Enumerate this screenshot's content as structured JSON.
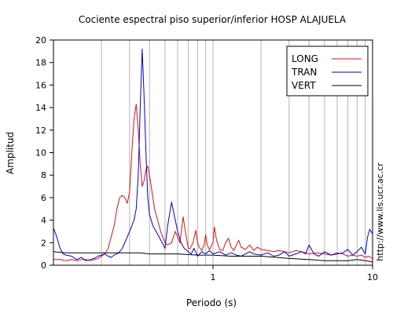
{
  "chart_data": {
    "type": "line",
    "title": "Cociente espectral piso superior/inferior  HOSP ALAJUELA",
    "xlabel": "Periodo (s)",
    "ylabel": "Amplitud",
    "side_label": "http://www.lis.ucr.ac.cr",
    "x_scale": "log",
    "xlim": [
      0.1,
      10
    ],
    "ylim": [
      0,
      20
    ],
    "x_ticks": [
      1,
      10
    ],
    "x_tick_labels": [
      "1",
      "10"
    ],
    "y_ticks": [
      0,
      2,
      4,
      6,
      8,
      10,
      12,
      14,
      16,
      18,
      20
    ],
    "y_tick_labels": [
      "0",
      "2",
      "4",
      "6",
      "8",
      "10",
      "12",
      "14",
      "16",
      "18",
      "20"
    ],
    "grid": "vertical log grid",
    "legend_position": "top-right",
    "series": [
      {
        "name": "LONG",
        "color": "#e01010",
        "x": [
          0.1,
          0.11,
          0.12,
          0.13,
          0.14,
          0.15,
          0.16,
          0.17,
          0.18,
          0.19,
          0.2,
          0.21,
          0.22,
          0.23,
          0.24,
          0.25,
          0.26,
          0.27,
          0.28,
          0.29,
          0.3,
          0.31,
          0.32,
          0.33,
          0.34,
          0.35,
          0.36,
          0.37,
          0.38,
          0.39,
          0.4,
          0.41,
          0.42,
          0.43,
          0.45,
          0.47,
          0.5,
          0.52,
          0.55,
          0.58,
          0.6,
          0.62,
          0.65,
          0.68,
          0.7,
          0.72,
          0.75,
          0.78,
          0.8,
          0.82,
          0.85,
          0.88,
          0.9,
          0.92,
          0.95,
          1.0,
          1.02,
          1.05,
          1.1,
          1.15,
          1.2,
          1.25,
          1.3,
          1.35,
          1.4,
          1.45,
          1.5,
          1.6,
          1.7,
          1.8,
          1.9,
          2.0,
          2.2,
          2.4,
          2.6,
          2.8,
          3.0,
          3.3,
          3.6,
          4.0,
          4.5,
          5.0,
          5.5,
          6.0,
          6.5,
          7.0,
          7.5,
          8.0,
          8.5,
          9.0,
          9.5,
          10.0
        ],
        "y": [
          0.5,
          0.5,
          0.4,
          0.5,
          0.4,
          0.5,
          0.5,
          0.4,
          0.5,
          0.6,
          0.8,
          1.0,
          1.5,
          2.5,
          3.5,
          5.0,
          6.0,
          6.2,
          6.0,
          5.5,
          6.5,
          10.0,
          13.0,
          14.3,
          12.0,
          9.0,
          7.0,
          7.5,
          8.5,
          8.8,
          8.0,
          7.0,
          6.0,
          5.0,
          4.0,
          3.0,
          2.0,
          1.8,
          2.0,
          3.0,
          2.5,
          2.0,
          4.3,
          2.5,
          1.5,
          1.5,
          2.0,
          3.1,
          2.0,
          1.6,
          1.3,
          1.8,
          2.7,
          1.8,
          1.4,
          2.0,
          3.4,
          2.3,
          1.4,
          1.3,
          2.0,
          2.4,
          1.6,
          1.3,
          1.8,
          2.2,
          1.6,
          1.4,
          1.8,
          1.3,
          1.6,
          1.4,
          1.3,
          1.2,
          1.3,
          1.2,
          1.1,
          1.3,
          1.2,
          1.0,
          1.1,
          1.0,
          0.9,
          1.1,
          1.0,
          0.8,
          0.9,
          0.8,
          0.9,
          0.7,
          0.8,
          0.6
        ]
      },
      {
        "name": "TRAN",
        "color": "#0000cc",
        "x": [
          0.1,
          0.105,
          0.11,
          0.115,
          0.12,
          0.13,
          0.14,
          0.15,
          0.16,
          0.17,
          0.18,
          0.19,
          0.2,
          0.21,
          0.22,
          0.23,
          0.24,
          0.25,
          0.26,
          0.27,
          0.28,
          0.29,
          0.3,
          0.31,
          0.32,
          0.33,
          0.34,
          0.35,
          0.36,
          0.37,
          0.38,
          0.39,
          0.4,
          0.41,
          0.42,
          0.44,
          0.46,
          0.48,
          0.5,
          0.52,
          0.55,
          0.58,
          0.6,
          0.63,
          0.66,
          0.7,
          0.73,
          0.76,
          0.8,
          0.85,
          0.9,
          0.95,
          1.0,
          1.1,
          1.2,
          1.3,
          1.4,
          1.5,
          1.6,
          1.7,
          1.8,
          2.0,
          2.2,
          2.4,
          2.6,
          2.8,
          3.0,
          3.3,
          3.6,
          3.8,
          4.0,
          4.3,
          4.6,
          5.0,
          5.5,
          6.0,
          6.5,
          7.0,
          7.5,
          8.0,
          8.5,
          9.0,
          9.3,
          9.6,
          10.0
        ],
        "y": [
          3.3,
          2.5,
          1.5,
          1.0,
          0.9,
          0.8,
          0.5,
          0.7,
          0.4,
          0.5,
          0.6,
          0.8,
          0.9,
          1.0,
          0.8,
          0.7,
          0.9,
          1.0,
          1.2,
          1.5,
          2.0,
          2.5,
          3.0,
          3.5,
          4.0,
          5.0,
          8.0,
          14.0,
          19.2,
          15.0,
          10.0,
          6.0,
          4.5,
          4.0,
          3.5,
          3.0,
          2.5,
          2.0,
          1.5,
          3.5,
          5.6,
          4.0,
          3.0,
          2.0,
          1.5,
          1.2,
          1.0,
          1.5,
          0.8,
          1.2,
          1.0,
          1.3,
          1.0,
          1.2,
          0.9,
          1.1,
          0.9,
          0.8,
          1.0,
          1.2,
          1.0,
          0.9,
          1.1,
          0.8,
          0.9,
          1.2,
          0.8,
          1.0,
          1.2,
          1.0,
          1.8,
          1.0,
          0.8,
          1.2,
          0.9,
          1.0,
          1.1,
          1.4,
          0.9,
          1.2,
          1.6,
          1.0,
          2.5,
          3.2,
          2.8
        ]
      },
      {
        "name": "VERT",
        "color": "#000000",
        "x": [
          0.1,
          0.12,
          0.15,
          0.2,
          0.25,
          0.3,
          0.35,
          0.4,
          0.5,
          0.6,
          0.8,
          1.0,
          1.3,
          1.6,
          2.0,
          2.5,
          3.0,
          4.0,
          5.0,
          6.0,
          7.0,
          8.0,
          9.0,
          10.0
        ],
        "y": [
          1.2,
          1.1,
          1.1,
          1.1,
          1.1,
          1.1,
          1.1,
          1.0,
          1.0,
          1.0,
          0.9,
          0.9,
          0.8,
          0.8,
          0.8,
          0.7,
          0.6,
          0.5,
          0.4,
          0.4,
          0.4,
          0.5,
          0.4,
          0.3
        ]
      }
    ]
  }
}
